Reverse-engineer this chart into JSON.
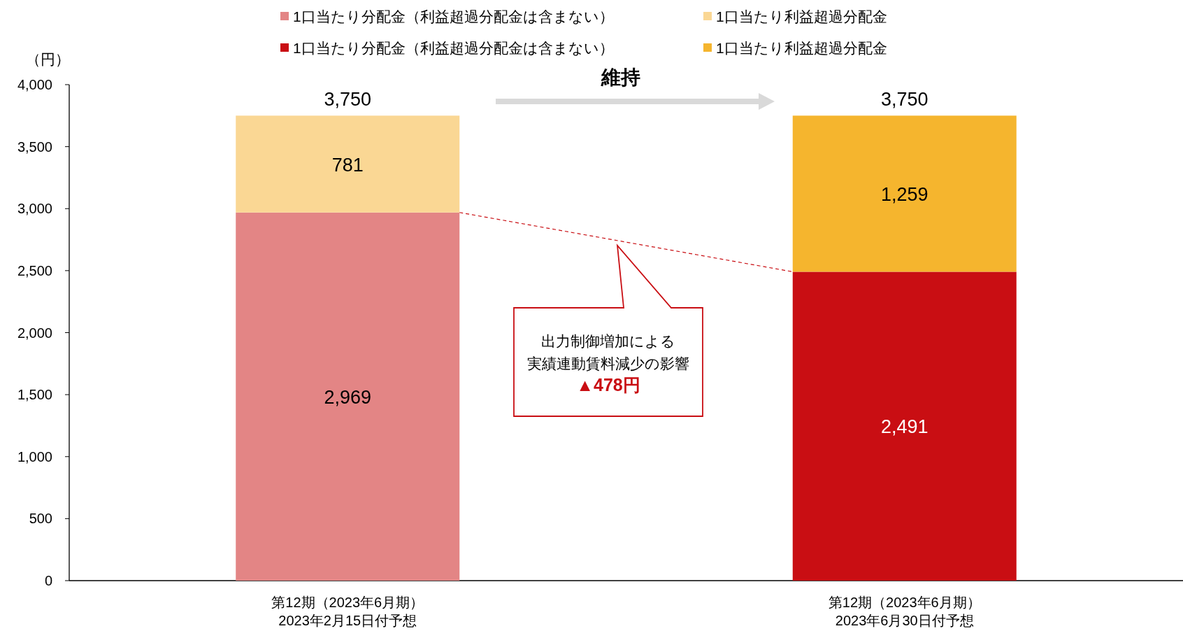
{
  "chart_data": {
    "type": "bar",
    "stacked": true,
    "ylabel": "（円）",
    "categories": [
      "第12期（2023年6月期）\n2023年2月15日付予想",
      "第12期（2023年6月期）\n2023年6月30日付予想"
    ],
    "series": [
      {
        "name": "1口当たり分配金（利益超過分配金は含まない）",
        "color": "#e38585",
        "values": [
          2969,
          null
        ],
        "value_labels": [
          "2,969",
          null
        ]
      },
      {
        "name": "1口当たり利益超過分配金",
        "color": "#fad794",
        "values": [
          781,
          null
        ],
        "value_labels": [
          "781",
          null
        ]
      },
      {
        "name": "1口当たり分配金（利益超過分配金は含まない）",
        "color": "#c90e13",
        "values": [
          null,
          2491
        ],
        "value_labels": [
          null,
          "2,491"
        ]
      },
      {
        "name": "1口当たり利益超過分配金",
        "color": "#f5b52e",
        "values": [
          null,
          1259
        ],
        "value_labels": [
          null,
          "1,259"
        ]
      }
    ],
    "totals": [
      "3,750",
      "3,750"
    ],
    "ylim": [
      0,
      4000
    ],
    "yticks": [
      {
        "value": 0,
        "label": "0"
      },
      {
        "value": 500,
        "label": "500"
      },
      {
        "value": 1000,
        "label": "1,000"
      },
      {
        "value": 1500,
        "label": "1,500"
      },
      {
        "value": 2000,
        "label": "2,000"
      },
      {
        "value": 2500,
        "label": "2,500"
      },
      {
        "value": 3000,
        "label": "3,000"
      },
      {
        "value": 3500,
        "label": "3,500"
      },
      {
        "value": 4000,
        "label": "4,000"
      }
    ],
    "legend": "top",
    "grid": false,
    "annotations": [
      "維持",
      "出力制御増加による",
      "実績連動賃料減少の影響",
      "▲478円"
    ]
  }
}
